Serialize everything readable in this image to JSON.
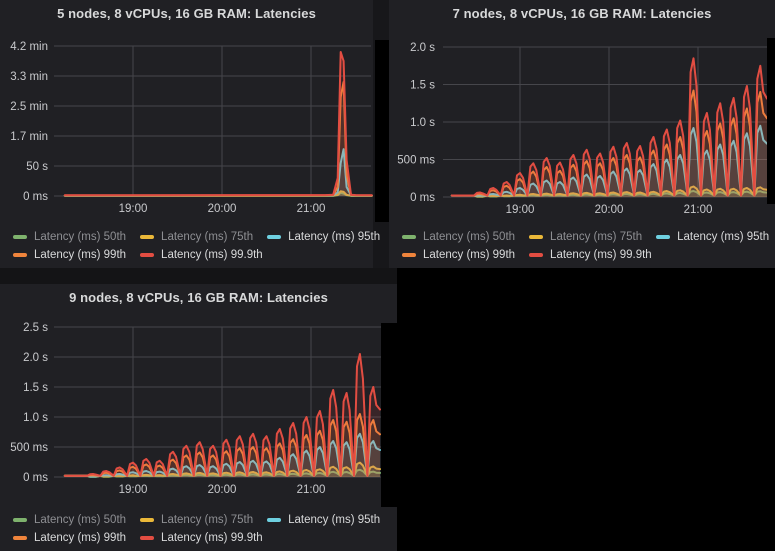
{
  "dashboard": {
    "background": "#000000",
    "panel_bg": "#202024",
    "grid_color": "#46464b",
    "title_color": "#d8d9da",
    "axis_text_color": "#c9cacd",
    "legend_dim_text_color": "#8e8f93"
  },
  "legend": {
    "items": [
      {
        "label": "Latency (ms) 50th",
        "color": "#7eb26d",
        "dim": true
      },
      {
        "label": "Latency (ms) 75th",
        "color": "#eab839",
        "dim": true
      },
      {
        "label": "Latency (ms) 95th",
        "color": "#6ed0e0",
        "dim": false
      },
      {
        "label": "Latency (ms) 99th",
        "color": "#ef843c",
        "dim": false
      },
      {
        "label": "Latency (ms) 99.9th",
        "color": "#e24d42",
        "dim": false
      }
    ],
    "rows": [
      [
        0,
        1,
        2
      ],
      [
        3,
        4
      ]
    ]
  },
  "chart_data": [
    {
      "type": "line",
      "title": "5 nodes, 8 vCPUs, 16 GB RAM: Latencies",
      "unit": "seconds",
      "ylim": [
        0,
        250
      ],
      "grid": true,
      "legend_position": "bottom-left",
      "yticks": [
        {
          "v": 250,
          "label": "4.2 min"
        },
        {
          "v": 200,
          "label": "3.3 min"
        },
        {
          "v": 150,
          "label": "2.5 min"
        },
        {
          "v": 100,
          "label": "1.7 min"
        },
        {
          "v": 50,
          "label": "50 s"
        },
        {
          "v": 0,
          "label": "0 ms"
        }
      ],
      "xticks": [
        {
          "m": 60,
          "label": "19:00"
        },
        {
          "m": 120,
          "label": "20:00"
        },
        {
          "m": 180,
          "label": "21:00"
        }
      ],
      "x_minutes_after_1800": [
        14,
        190,
        195,
        198,
        200,
        202,
        204,
        207,
        210,
        221
      ],
      "series": [
        {
          "name": "Latency (ms) 50th",
          "color": "#7eb26d",
          "values": [
            0.3,
            0.4,
            0.5,
            1.5,
            5,
            4,
            1.5,
            0.4,
            0.3,
            0.3
          ]
        },
        {
          "name": "Latency (ms) 75th",
          "color": "#eab839",
          "values": [
            0.4,
            0.5,
            0.6,
            2,
            8,
            7,
            2,
            0.5,
            0.4,
            0.4
          ]
        },
        {
          "name": "Latency (ms) 95th",
          "color": "#6ed0e0",
          "values": [
            0.6,
            0.8,
            1,
            6,
            55,
            78,
            15,
            1,
            0.8,
            0.6
          ]
        },
        {
          "name": "Latency (ms) 99th",
          "color": "#ef843c",
          "values": [
            1,
            1.2,
            1.5,
            15,
            165,
            190,
            35,
            1.5,
            1.2,
            1
          ]
        },
        {
          "name": "Latency (ms) 99.9th",
          "color": "#e24d42",
          "values": [
            1.2,
            1.5,
            2,
            30,
            240,
            225,
            60,
            2,
            1.5,
            1.2
          ]
        }
      ]
    },
    {
      "type": "line",
      "title": "7 nodes, 8 vCPUs, 16 GB RAM: Latencies",
      "unit": "seconds",
      "ylim": [
        0,
        2.0
      ],
      "grid": true,
      "legend_position": "bottom-left",
      "yticks": [
        {
          "v": 2.0,
          "label": "2.0 s"
        },
        {
          "v": 1.5,
          "label": "1.5 s"
        },
        {
          "v": 1.0,
          "label": "1.0 s"
        },
        {
          "v": 0.5,
          "label": "500 ms"
        },
        {
          "v": 0,
          "label": "0 ms"
        }
      ],
      "xticks": [
        {
          "m": 60,
          "label": "19:00"
        },
        {
          "m": 120,
          "label": "20:00"
        },
        {
          "m": 180,
          "label": "21:00"
        }
      ],
      "baseline": 0.02,
      "burst_minutes": [
        33,
        42,
        51,
        60,
        69,
        78,
        87,
        96,
        105,
        114,
        123,
        132,
        141,
        150,
        159,
        168,
        177,
        186,
        195,
        204,
        213,
        222
      ],
      "series": [
        {
          "name": "Latency (ms) 50th",
          "color": "#7eb26d",
          "peaks": [
            0.005,
            0.008,
            0.012,
            0.018,
            0.024,
            0.027,
            0.024,
            0.03,
            0.033,
            0.03,
            0.036,
            0.04,
            0.036,
            0.042,
            0.048,
            0.054,
            0.08,
            0.06,
            0.066,
            0.066,
            0.072,
            0.078
          ]
        },
        {
          "name": "Latency (ms) 75th",
          "color": "#eab839",
          "peaks": [
            0.01,
            0.015,
            0.02,
            0.03,
            0.04,
            0.045,
            0.04,
            0.05,
            0.055,
            0.05,
            0.06,
            0.065,
            0.06,
            0.07,
            0.08,
            0.09,
            0.14,
            0.1,
            0.11,
            0.11,
            0.12,
            0.13
          ]
        },
        {
          "name": "Latency (ms) 95th",
          "color": "#6ed0e0",
          "peaks": [
            0.02,
            0.04,
            0.07,
            0.12,
            0.18,
            0.22,
            0.2,
            0.26,
            0.3,
            0.28,
            0.34,
            0.38,
            0.36,
            0.44,
            0.5,
            0.56,
            0.92,
            0.62,
            0.7,
            0.75,
            0.85,
            0.95
          ]
        },
        {
          "name": "Latency (ms) 99th",
          "color": "#ef843c",
          "peaks": [
            0.04,
            0.09,
            0.15,
            0.24,
            0.34,
            0.4,
            0.35,
            0.43,
            0.48,
            0.45,
            0.52,
            0.56,
            0.53,
            0.62,
            0.7,
            0.8,
            1.42,
            0.88,
            0.98,
            1.05,
            1.18,
            1.4
          ]
        },
        {
          "name": "Latency (ms) 99.9th",
          "color": "#e24d42",
          "peaks": [
            0.06,
            0.12,
            0.2,
            0.32,
            0.45,
            0.52,
            0.46,
            0.56,
            0.63,
            0.58,
            0.67,
            0.72,
            0.68,
            0.8,
            0.9,
            1.02,
            1.85,
            1.12,
            1.25,
            1.32,
            1.48,
            1.75
          ]
        }
      ]
    },
    {
      "type": "line",
      "title": "9 nodes, 8 vCPUs, 16 GB RAM: Latencies",
      "unit": "seconds",
      "ylim": [
        0,
        2.5
      ],
      "grid": true,
      "legend_position": "bottom-left",
      "yticks": [
        {
          "v": 2.5,
          "label": "2.5 s"
        },
        {
          "v": 2.0,
          "label": "2.0 s"
        },
        {
          "v": 1.5,
          "label": "1.5 s"
        },
        {
          "v": 1.0,
          "label": "1.0 s"
        },
        {
          "v": 0.5,
          "label": "500 ms"
        },
        {
          "v": 0,
          "label": "0 ms"
        }
      ],
      "xticks": [
        {
          "m": 60,
          "label": "19:00"
        },
        {
          "m": 120,
          "label": "20:00"
        },
        {
          "m": 180,
          "label": "21:00"
        }
      ],
      "baseline": 0.02,
      "burst_minutes": [
        33,
        42,
        51,
        60,
        69,
        78,
        87,
        96,
        105,
        114,
        123,
        132,
        141,
        150,
        159,
        168,
        177,
        186,
        195,
        204,
        213,
        222
      ],
      "series": [
        {
          "name": "Latency (ms) 50th",
          "color": "#7eb26d",
          "peaks": [
            0.004,
            0.006,
            0.01,
            0.015,
            0.018,
            0.017,
            0.025,
            0.031,
            0.035,
            0.031,
            0.037,
            0.041,
            0.043,
            0.041,
            0.048,
            0.054,
            0.06,
            0.066,
            0.087,
            0.084,
            0.12,
            0.09
          ]
        },
        {
          "name": "Latency (ms) 75th",
          "color": "#eab839",
          "peaks": [
            0.008,
            0.012,
            0.018,
            0.028,
            0.035,
            0.032,
            0.05,
            0.06,
            0.068,
            0.06,
            0.072,
            0.079,
            0.084,
            0.079,
            0.093,
            0.105,
            0.117,
            0.128,
            0.17,
            0.163,
            0.24,
            0.175
          ]
        },
        {
          "name": "Latency (ms) 95th",
          "color": "#6ed0e0",
          "peaks": [
            0.01,
            0.03,
            0.05,
            0.08,
            0.1,
            0.09,
            0.14,
            0.18,
            0.2,
            0.18,
            0.22,
            0.25,
            0.27,
            0.26,
            0.32,
            0.38,
            0.44,
            0.5,
            0.6,
            0.58,
            0.72,
            0.6
          ]
        },
        {
          "name": "Latency (ms) 99th",
          "color": "#ef843c",
          "peaks": [
            0.03,
            0.07,
            0.11,
            0.17,
            0.21,
            0.19,
            0.29,
            0.36,
            0.41,
            0.36,
            0.43,
            0.48,
            0.5,
            0.48,
            0.56,
            0.63,
            0.7,
            0.77,
            0.95,
            0.92,
            1.05,
            0.95
          ]
        },
        {
          "name": "Latency (ms) 99.9th",
          "color": "#e24d42",
          "peaks": [
            0.05,
            0.1,
            0.16,
            0.24,
            0.3,
            0.27,
            0.42,
            0.52,
            0.58,
            0.52,
            0.62,
            0.68,
            0.72,
            0.68,
            0.8,
            0.9,
            1.0,
            1.1,
            1.45,
            1.4,
            2.05,
            1.5
          ]
        }
      ]
    }
  ]
}
